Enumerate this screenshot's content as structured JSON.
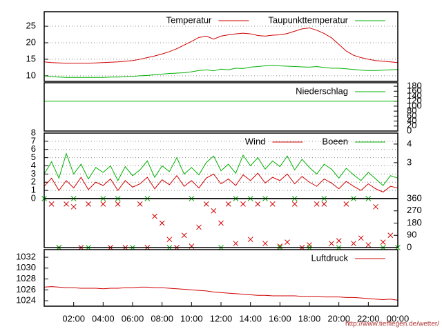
{
  "chart_data": [
    {
      "type": "line",
      "legend": "top-right",
      "grid": true,
      "x": [
        0,
        0.5,
        1,
        1.5,
        2,
        2.5,
        3,
        3.5,
        4,
        4.5,
        5,
        5.5,
        6,
        6.5,
        7,
        7.5,
        8,
        8.5,
        9,
        9.5,
        10,
        10.5,
        11,
        11.5,
        12,
        12.5,
        13,
        13.5,
        14,
        14.5,
        15,
        15.5,
        16,
        16.5,
        17,
        17.5,
        18,
        18.5,
        19,
        19.5,
        20,
        20.5,
        21,
        21.5,
        22,
        22.5,
        23,
        23.5,
        24
      ],
      "xlim": [
        0,
        24
      ],
      "ylim": [
        8.3,
        29.4
      ],
      "yticks": [
        10,
        15,
        20,
        25
      ],
      "series": [
        {
          "name": "Temperatur",
          "color": "#d00000",
          "values": [
            14.2,
            14.0,
            13.9,
            13.8,
            13.8,
            13.8,
            13.8,
            13.9,
            14.0,
            14.1,
            14.2,
            14.4,
            14.6,
            15.0,
            15.5,
            16.0,
            16.6,
            17.3,
            18.2,
            19.3,
            20.4,
            21.6,
            22.0,
            21.1,
            22.0,
            22.4,
            22.7,
            22.9,
            22.7,
            22.2,
            22.0,
            22.3,
            22.4,
            22.8,
            23.5,
            24.2,
            24.5,
            23.8,
            22.8,
            21.5,
            19.5,
            17.5,
            16.2,
            15.5,
            15.0,
            14.6,
            14.4,
            14.2,
            14.0
          ]
        },
        {
          "name": "Taupunkttemperatur",
          "color": "#00b000",
          "values": [
            10.0,
            9.7,
            9.6,
            9.5,
            9.5,
            9.5,
            9.5,
            9.5,
            9.5,
            9.6,
            9.6,
            9.7,
            9.8,
            10.0,
            10.1,
            10.3,
            10.5,
            10.7,
            10.8,
            10.9,
            11.2,
            11.6,
            11.8,
            11.5,
            12.0,
            11.8,
            12.3,
            12.2,
            12.6,
            12.8,
            13.0,
            13.2,
            13.0,
            12.9,
            12.8,
            12.7,
            12.6,
            12.8,
            12.5,
            12.3,
            12.3,
            12.1,
            11.9,
            11.7,
            11.6,
            11.6,
            11.7,
            11.8,
            11.9
          ]
        }
      ]
    },
    {
      "type": "line",
      "legend": "top-right",
      "grid": false,
      "x": [
        0,
        24
      ],
      "xlim": [
        0,
        24
      ],
      "y2lim": [
        0,
        194
      ],
      "y2ticks": [
        0,
        20,
        40,
        60,
        80,
        100,
        120,
        140,
        160,
        180
      ],
      "series": [
        {
          "name": "Niederschlag",
          "color": "#00b000",
          "axis": "y2",
          "values": [
            120,
            120
          ]
        }
      ]
    },
    {
      "type": "line",
      "legend": "top-right",
      "grid": true,
      "x": [
        0,
        0.5,
        1,
        1.5,
        2,
        2.5,
        3,
        3.5,
        4,
        4.5,
        5,
        5.5,
        6,
        6.5,
        7,
        7.5,
        8,
        8.5,
        9,
        9.5,
        10,
        10.5,
        11,
        11.5,
        12,
        12.5,
        13,
        13.5,
        14,
        14.5,
        15,
        15.5,
        16,
        16.5,
        17,
        17.5,
        18,
        18.5,
        19,
        19.5,
        20,
        20.5,
        21,
        21.5,
        22,
        22.5,
        23,
        23.5,
        24
      ],
      "xlim": [
        0,
        24
      ],
      "ylim": [
        0,
        8
      ],
      "yticks": [
        0,
        1,
        2,
        3,
        4,
        5,
        6,
        7,
        8
      ],
      "y2lim": [
        1.07,
        4.59
      ],
      "y2ticks": [
        3,
        4
      ],
      "series": [
        {
          "name": "Wind",
          "color": "#d00000",
          "values": [
            1.5,
            2.5,
            1.0,
            2.2,
            1.3,
            2.6,
            1.1,
            2.0,
            1.6,
            2.4,
            1.0,
            2.2,
            1.4,
            1.8,
            2.6,
            1.2,
            2.3,
            1.7,
            2.8,
            1.5,
            2.2,
            1.3,
            2.5,
            3.0,
            1.8,
            2.4,
            1.6,
            2.9,
            2.2,
            3.1,
            1.9,
            2.6,
            2.2,
            3.0,
            1.8,
            2.7,
            2.0,
            1.5,
            2.4,
            1.9,
            1.2,
            2.1,
            1.5,
            1.0,
            1.8,
            1.2,
            0.8,
            1.5,
            1.3
          ]
        },
        {
          "name": "Boeen",
          "color": "#00b000",
          "values": [
            3.0,
            4.5,
            2.5,
            5.5,
            3.0,
            4.2,
            2.4,
            3.8,
            3.2,
            4.0,
            2.2,
            3.9,
            2.8,
            3.5,
            4.6,
            2.6,
            4.0,
            3.3,
            5.0,
            3.0,
            3.8,
            2.9,
            4.4,
            5.2,
            3.4,
            4.2,
            3.1,
            5.3,
            4.0,
            5.0,
            3.6,
            4.6,
            3.9,
            5.2,
            3.5,
            4.8,
            3.8,
            3.0,
            4.2,
            3.6,
            2.5,
            3.7,
            2.9,
            2.2,
            3.2,
            2.4,
            1.6,
            2.8,
            2.5
          ]
        }
      ]
    },
    {
      "type": "scatter",
      "grid": false,
      "xlim": [
        0,
        24
      ],
      "y2lim": [
        0,
        360
      ],
      "y2ticks": [
        0,
        90,
        180,
        270,
        360
      ],
      "series": [
        {
          "color": "#d00000",
          "axis": "y2",
          "x": [
            0.5,
            1,
            1.5,
            2,
            2.5,
            3,
            4,
            4.5,
            5,
            5.5,
            6.5,
            7,
            7.5,
            8,
            8.5,
            9,
            9.5,
            10,
            10.5,
            11,
            11.5,
            12,
            12.5,
            13,
            13.5,
            14,
            14.5,
            15,
            15.5,
            16,
            16.5,
            17,
            17.5,
            18,
            18.5,
            19,
            19.5,
            20,
            20.5,
            21,
            21.5,
            22,
            22.5,
            23,
            23.5
          ],
          "values": [
            320,
            0,
            320,
            300,
            0,
            320,
            320,
            0,
            320,
            0,
            320,
            0,
            230,
            180,
            60,
            0,
            90,
            10,
            150,
            320,
            270,
            180,
            320,
            30,
            320,
            60,
            320,
            30,
            320,
            10,
            40,
            320,
            0,
            20,
            320,
            320,
            30,
            50,
            320,
            30,
            70,
            20,
            300,
            40,
            90
          ]
        },
        {
          "color": "#00b000",
          "axis": "y2",
          "x": [
            0,
            1,
            2,
            3,
            4,
            5,
            6,
            7,
            8.5,
            10,
            12,
            13,
            14,
            15,
            16,
            17,
            18,
            19,
            20,
            21,
            22,
            23,
            24
          ],
          "values": [
            360,
            0,
            360,
            0,
            360,
            360,
            0,
            360,
            0,
            360,
            0,
            360,
            360,
            360,
            0,
            360,
            0,
            360,
            0,
            360,
            360,
            0,
            0
          ]
        }
      ]
    },
    {
      "type": "line",
      "legend": "top-right",
      "grid": false,
      "x": [
        0,
        0.5,
        1,
        1.5,
        2,
        2.5,
        3,
        3.5,
        4,
        4.5,
        5,
        5.5,
        6,
        6.5,
        7,
        7.5,
        8,
        8.5,
        9,
        9.5,
        10,
        10.5,
        11,
        11.5,
        12,
        12.5,
        13,
        13.5,
        14,
        14.5,
        15,
        15.5,
        16,
        16.5,
        17,
        17.5,
        18,
        18.5,
        19,
        19.5,
        20,
        20.5,
        21,
        21.5,
        22,
        22.5,
        23,
        23.5,
        24
      ],
      "xlim": [
        0,
        24
      ],
      "ylim": [
        1023,
        1033.4
      ],
      "yticks": [
        1024,
        1026,
        1028,
        1030,
        1032
      ],
      "xticks": [
        {
          "value": 2,
          "label": "02:00"
        },
        {
          "value": 4,
          "label": "04:00"
        },
        {
          "value": 6,
          "label": "06:00"
        },
        {
          "value": 8,
          "label": "08:00"
        },
        {
          "value": 10,
          "label": "10:00"
        },
        {
          "value": 12,
          "label": "12:00"
        },
        {
          "value": 14,
          "label": "14:00"
        },
        {
          "value": 16,
          "label": "16:00"
        },
        {
          "value": 18,
          "label": "18:00"
        },
        {
          "value": 20,
          "label": "20:00"
        },
        {
          "value": 22,
          "label": "22:00"
        },
        {
          "value": 24,
          "label": "00:00"
        }
      ],
      "series": [
        {
          "name": "Luftdruck",
          "color": "#d00000",
          "values": [
            1026.5,
            1026.6,
            1026.5,
            1026.4,
            1026.4,
            1026.3,
            1026.3,
            1026.3,
            1026.2,
            1026.3,
            1026.3,
            1026.4,
            1026.4,
            1026.5,
            1026.5,
            1026.4,
            1026.4,
            1026.3,
            1026.2,
            1026.1,
            1026.0,
            1025.9,
            1025.8,
            1025.6,
            1025.5,
            1025.4,
            1025.3,
            1025.2,
            1025.1,
            1025.0,
            1025.0,
            1024.9,
            1024.9,
            1024.9,
            1024.9,
            1024.8,
            1024.8,
            1024.8,
            1024.7,
            1024.7,
            1024.7,
            1024.6,
            1024.6,
            1024.5,
            1024.4,
            1024.3,
            1024.2,
            1024.3,
            1024.1
          ]
        }
      ]
    }
  ],
  "footer": "http://www.tiefflegen.de/wetter/"
}
